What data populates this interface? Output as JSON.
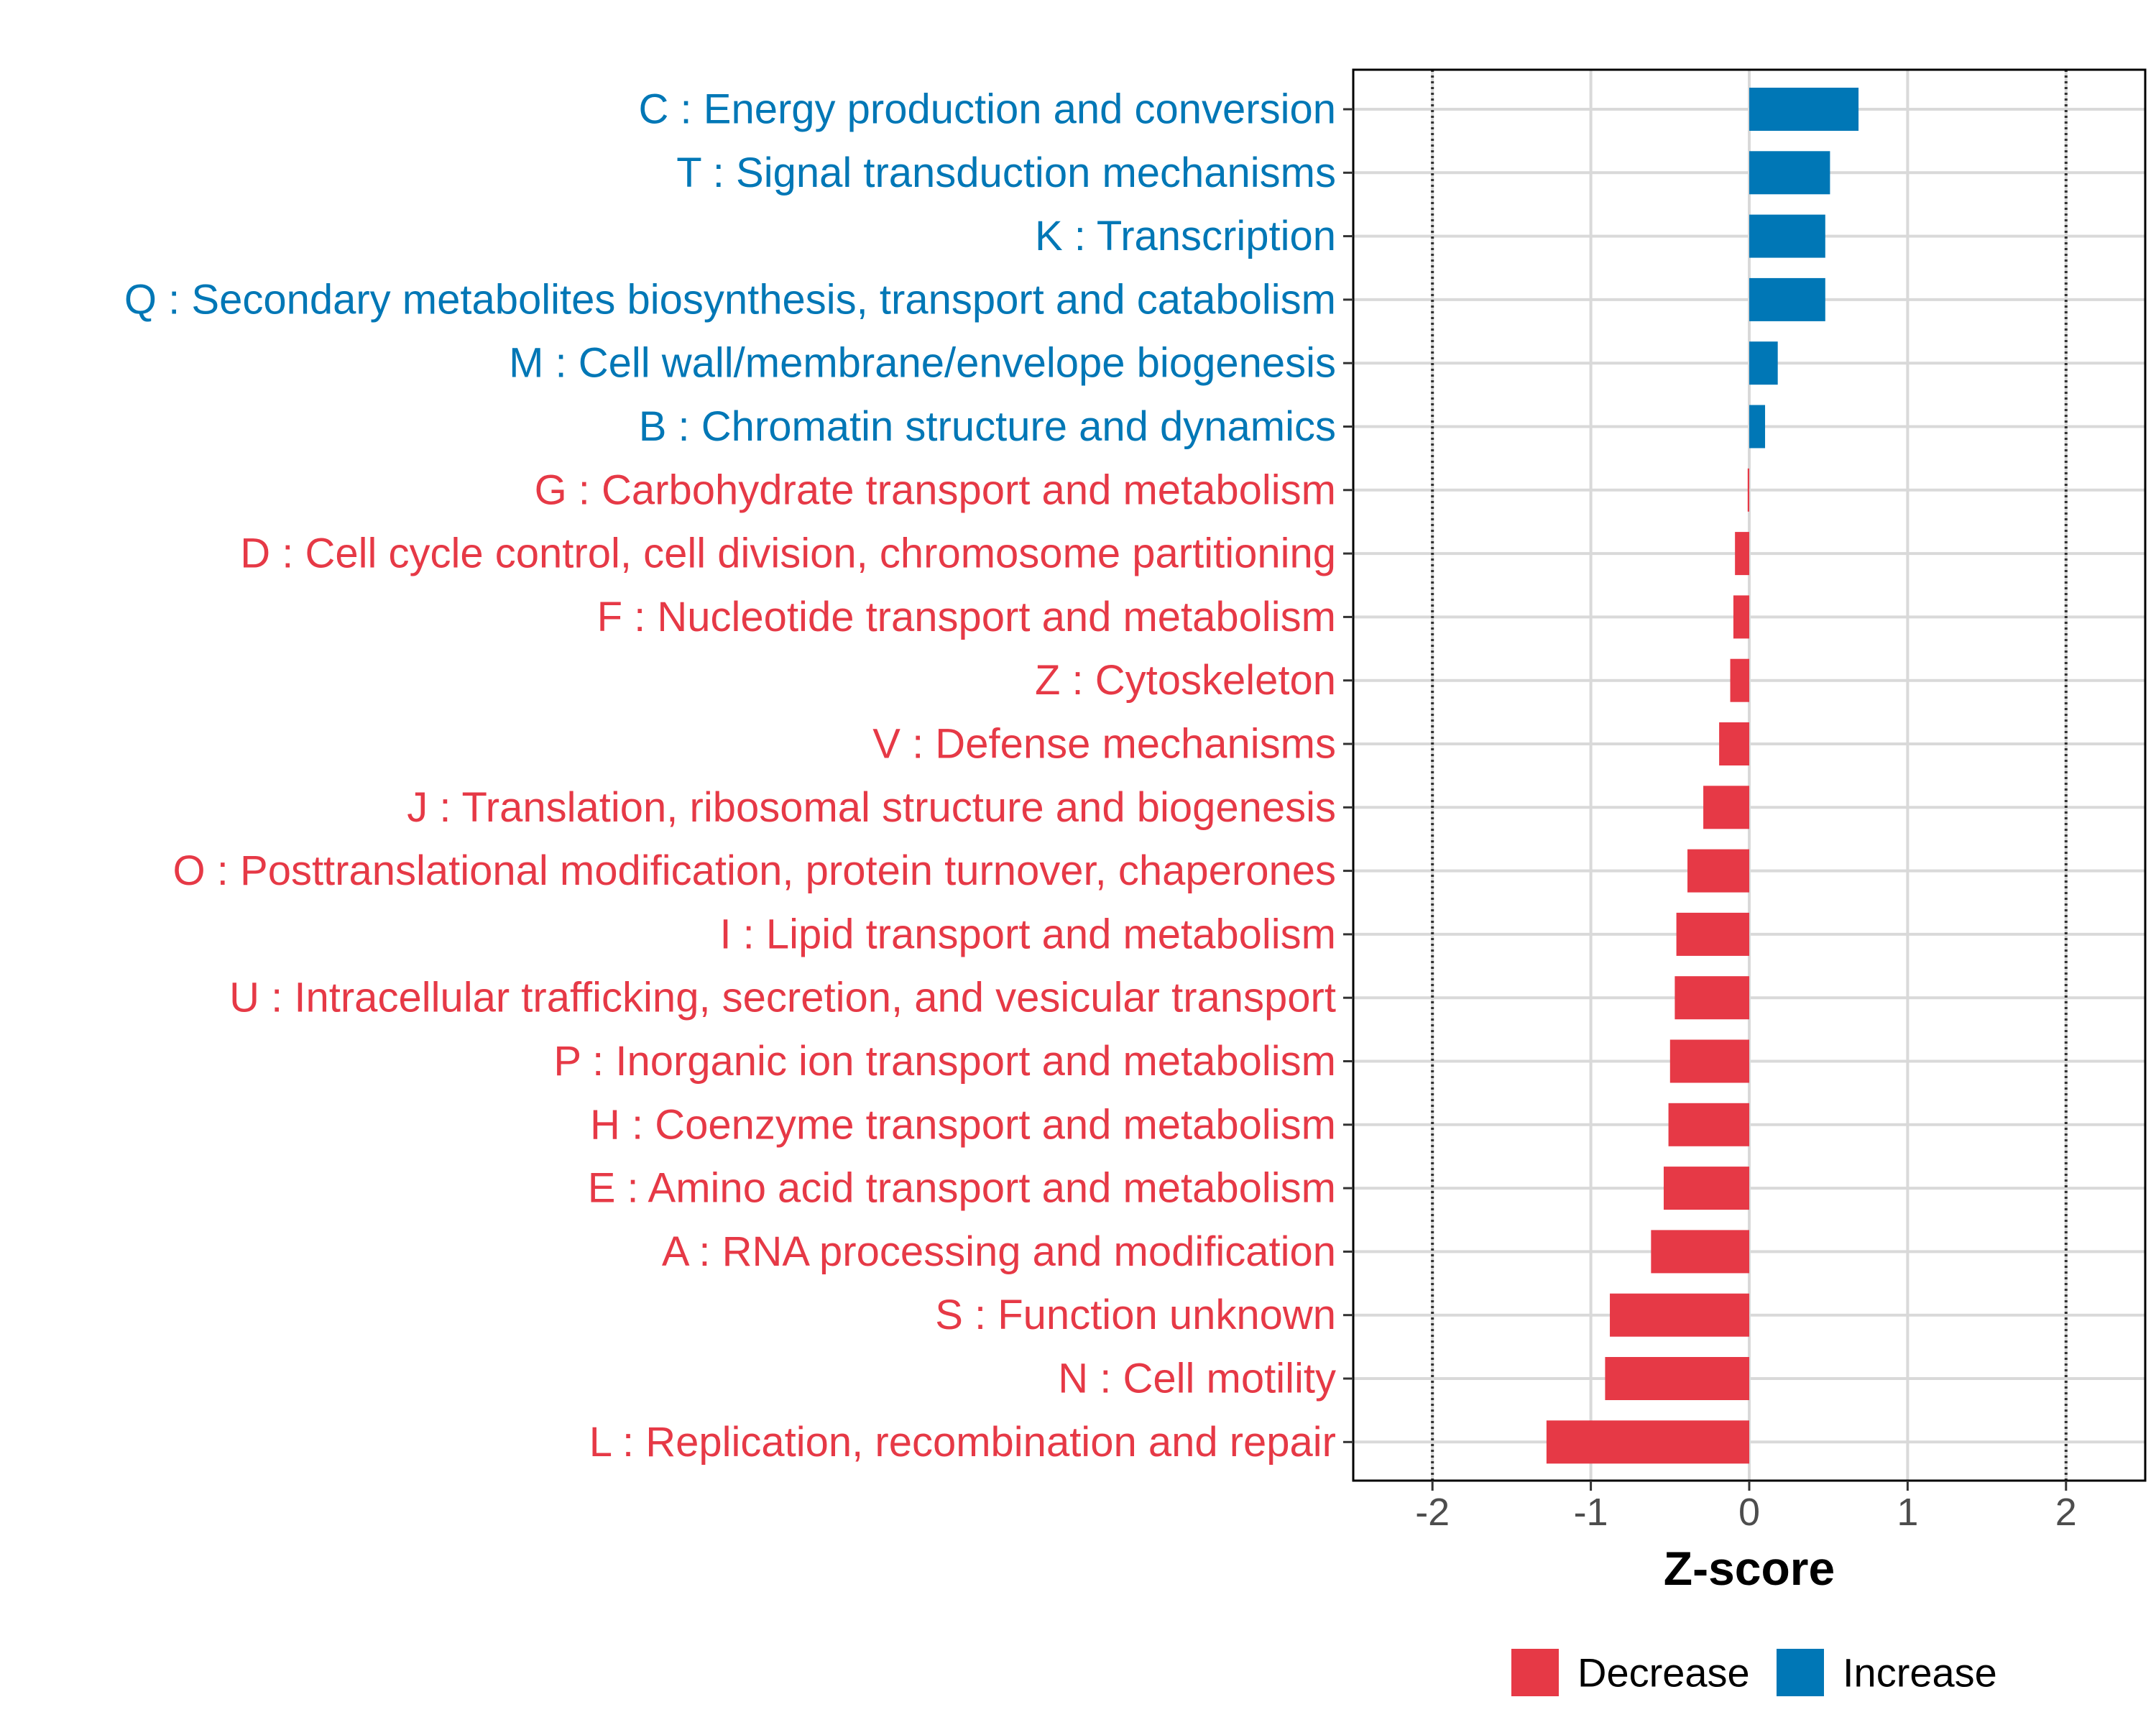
{
  "chart_data": {
    "type": "bar",
    "orientation": "horizontal",
    "xlabel": "Z-score",
    "xlim": [
      -2.5,
      2.5
    ],
    "xticks": [
      -2,
      -1,
      0,
      1,
      2
    ],
    "xtick_labels": [
      "-2",
      "-1",
      "0",
      "1",
      "2"
    ],
    "reference_lines": [
      -2,
      2
    ],
    "colors": {
      "Decrease": "#e63946",
      "Increase": "#0077b6"
    },
    "categories": [
      "C : Energy production and conversion",
      "T : Signal transduction mechanisms",
      "K : Transcription",
      "Q : Secondary metabolites biosynthesis, transport and catabolism",
      "M : Cell wall/membrane/envelope biogenesis",
      "B : Chromatin structure and dynamics",
      "G : Carbohydrate transport and metabolism",
      "D : Cell cycle control, cell division, chromosome partitioning",
      "F : Nucleotide transport and metabolism",
      "Z : Cytoskeleton",
      "V : Defense mechanisms",
      "J : Translation, ribosomal structure and biogenesis",
      "O : Posttranslational modification, protein turnover, chaperones",
      "I : Lipid transport and metabolism",
      "U : Intracellular trafficking, secretion, and vesicular transport",
      "P : Inorganic ion transport and metabolism",
      "H : Coenzyme transport and metabolism",
      "E : Amino acid transport and metabolism",
      "A : RNA processing and modification",
      "S : Function unknown",
      "N : Cell motility",
      "L : Replication, recombination and repair"
    ],
    "values": [
      0.69,
      0.51,
      0.48,
      0.48,
      0.18,
      0.1,
      -0.01,
      -0.09,
      -0.1,
      -0.12,
      -0.19,
      -0.29,
      -0.39,
      -0.46,
      -0.47,
      -0.5,
      -0.51,
      -0.54,
      -0.62,
      -0.88,
      -0.91,
      -1.28
    ],
    "groups": [
      "Increase",
      "Increase",
      "Increase",
      "Increase",
      "Increase",
      "Increase",
      "Decrease",
      "Decrease",
      "Decrease",
      "Decrease",
      "Decrease",
      "Decrease",
      "Decrease",
      "Decrease",
      "Decrease",
      "Decrease",
      "Decrease",
      "Decrease",
      "Decrease",
      "Decrease",
      "Decrease",
      "Decrease"
    ],
    "legend": {
      "position": "bottom",
      "entries": [
        {
          "label": "Decrease",
          "color": "#e63946"
        },
        {
          "label": "Increase",
          "color": "#0077b6"
        }
      ]
    }
  }
}
